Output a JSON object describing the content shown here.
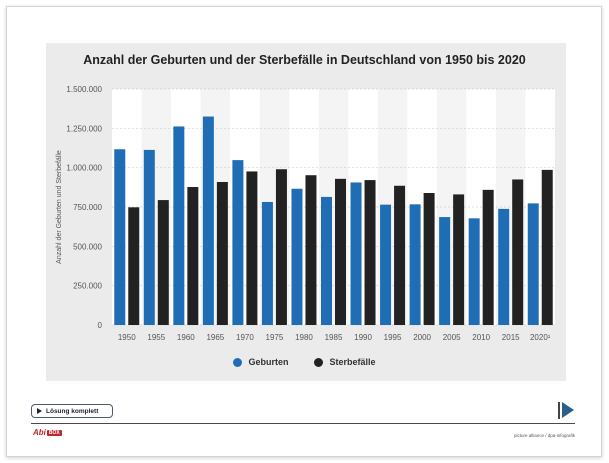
{
  "chart_data": {
    "type": "bar",
    "title": "Anzahl der Geburten und der Sterbefälle in Deutschland von 1950 bis 2020",
    "xlabel": "",
    "ylabel": "Anzahl der Geburten und Sterbefälle",
    "ylim": [
      0,
      1500000
    ],
    "yticks": [
      "0",
      "250.000",
      "500.000",
      "750.000",
      "1.000.000",
      "1.250.000",
      "1.500.000"
    ],
    "ytick_values": [
      0,
      250000,
      500000,
      750000,
      1000000,
      1250000,
      1500000
    ],
    "categories": [
      "1950",
      "1955",
      "1960",
      "1965",
      "1970",
      "1975",
      "1980",
      "1985",
      "1990",
      "1995",
      "2000",
      "2005",
      "2010",
      "2015",
      "2020¹"
    ],
    "series": [
      {
        "name": "Geburten",
        "color": "#1f6eb5",
        "values": [
          1117000,
          1113000,
          1262000,
          1325000,
          1048000,
          782000,
          866000,
          814000,
          906000,
          765000,
          767000,
          686000,
          678000,
          738000,
          773000
        ]
      },
      {
        "name": "Sterbefälle",
        "color": "#222222",
        "values": [
          748000,
          794000,
          877000,
          909000,
          976000,
          990000,
          952000,
          929000,
          921000,
          885000,
          839000,
          830000,
          859000,
          925000,
          986000
        ]
      }
    ],
    "legend_position": "bottom",
    "grid": true
  },
  "ui": {
    "solution_button_label": "Lösung komplett",
    "logo_text": "Abi",
    "logo_box": "BOX",
    "credit": "picture alliance / dpa-infografik"
  }
}
